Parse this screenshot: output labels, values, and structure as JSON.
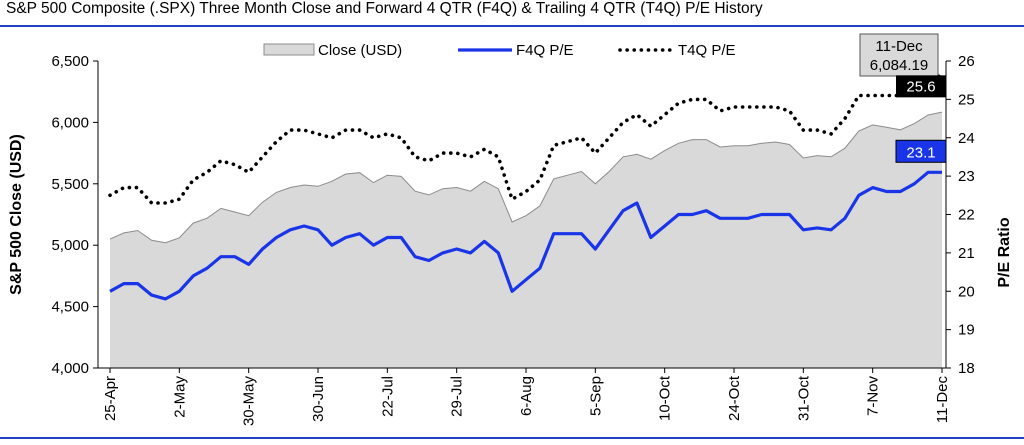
{
  "title": "S&P 500 Composite (.SPX) Three Month Close and Forward 4 QTR (F4Q) & Trailing 4 QTR (T4Q) P/E History",
  "chart_data": {
    "type": "area",
    "ylabel": "S&P 500 Close (USD)",
    "y2label": "P/E Ratio",
    "ylim": [
      4000,
      6500
    ],
    "y2lim": [
      18,
      26
    ],
    "yticks": [
      "4,000",
      "4,500",
      "5,000",
      "5,500",
      "6,000",
      "6,500"
    ],
    "y2ticks": [
      "18",
      "19",
      "20",
      "21",
      "22",
      "23",
      "24",
      "25",
      "26"
    ],
    "xtick_labels": [
      "25-Apr",
      "2-May",
      "30-May",
      "30-Jun",
      "22-Jul",
      "29-Jul",
      "6-Aug",
      "5-Sep",
      "10-Oct",
      "24-Oct",
      "31-Oct",
      "7-Nov",
      "11-Dec"
    ],
    "xtick_index": [
      0,
      5,
      10,
      15,
      20,
      25,
      30,
      35,
      40,
      45,
      50,
      55,
      60
    ],
    "legend": [
      "Close (USD)",
      "F4Q P/E",
      "T4Q P/E"
    ],
    "legend_position": "top",
    "series": [
      {
        "name": "Close (USD)",
        "axis": "left",
        "type": "area",
        "values": [
          5050,
          5100,
          5120,
          5040,
          5020,
          5060,
          5180,
          5220,
          5300,
          5270,
          5240,
          5350,
          5430,
          5470,
          5490,
          5480,
          5520,
          5580,
          5590,
          5510,
          5570,
          5560,
          5440,
          5410,
          5460,
          5470,
          5440,
          5520,
          5460,
          5190,
          5240,
          5320,
          5540,
          5570,
          5600,
          5500,
          5600,
          5720,
          5740,
          5700,
          5770,
          5830,
          5860,
          5860,
          5800,
          5810,
          5810,
          5830,
          5840,
          5820,
          5710,
          5730,
          5720,
          5790,
          5930,
          5980,
          5960,
          5940,
          5990,
          6060,
          6084.19
        ]
      },
      {
        "name": "F4Q P/E",
        "axis": "right",
        "type": "line",
        "values": [
          20.0,
          20.2,
          20.2,
          19.9,
          19.8,
          20.0,
          20.4,
          20.6,
          20.9,
          20.9,
          20.7,
          21.1,
          21.4,
          21.6,
          21.7,
          21.6,
          21.2,
          21.4,
          21.5,
          21.2,
          21.4,
          21.4,
          20.9,
          20.8,
          21.0,
          21.1,
          21.0,
          21.3,
          21.0,
          20.0,
          20.3,
          20.6,
          21.5,
          21.5,
          21.5,
          21.1,
          21.6,
          22.1,
          22.3,
          21.4,
          21.7,
          22.0,
          22.0,
          22.1,
          21.9,
          21.9,
          21.9,
          22.0,
          22.0,
          22.0,
          21.6,
          21.65,
          21.6,
          21.9,
          22.5,
          22.7,
          22.6,
          22.6,
          22.8,
          23.1,
          23.1
        ]
      },
      {
        "name": "T4Q P/E",
        "axis": "right",
        "type": "line",
        "style": "dotted",
        "values": [
          22.5,
          22.7,
          22.7,
          22.3,
          22.3,
          22.4,
          22.9,
          23.1,
          23.4,
          23.3,
          23.1,
          23.5,
          23.9,
          24.2,
          24.2,
          24.1,
          24.0,
          24.2,
          24.2,
          24.0,
          24.1,
          24.0,
          23.5,
          23.4,
          23.6,
          23.6,
          23.5,
          23.7,
          23.5,
          22.4,
          22.6,
          22.9,
          23.8,
          23.9,
          24.0,
          23.6,
          24.0,
          24.4,
          24.6,
          24.3,
          24.6,
          24.9,
          25.0,
          25.0,
          24.7,
          24.8,
          24.8,
          24.8,
          24.8,
          24.7,
          24.2,
          24.2,
          24.1,
          24.5,
          25.1,
          25.1,
          25.1,
          25.1,
          25.2,
          25.6,
          25.6
        ]
      }
    ],
    "callouts": [
      {
        "label": "11-Dec",
        "value": "6,084.19",
        "series": "Close (USD)"
      },
      {
        "value": "25.6",
        "series": "T4Q P/E"
      },
      {
        "value": "23.1",
        "series": "F4Q P/E"
      }
    ]
  },
  "colors": {
    "rule": "#1f3fbf",
    "area_fill": "#d9d9d9",
    "area_stroke": "#8c8c8c",
    "f4q_line": "#1a35e8",
    "t4q_line": "#000000",
    "callout_box_grey": "#d9d9d9",
    "callout_t4q_bg": "#000000",
    "callout_f4q_bg": "#1a35e8"
  }
}
